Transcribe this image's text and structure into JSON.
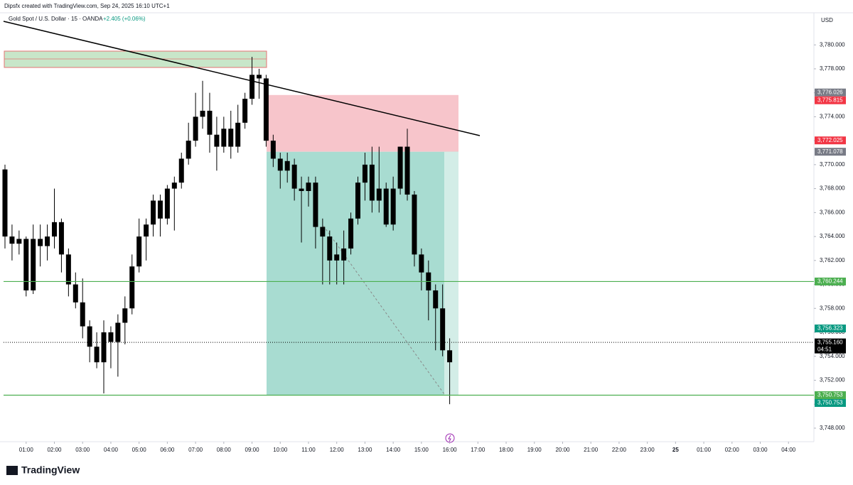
{
  "header": {
    "credit": "Dipsfx created with TradingView.com, Sep 24, 2025 16:10 UTC+1",
    "brand": "TradingView"
  },
  "chart_data": {
    "type": "candlestick",
    "title": "Gold Spot / U.S. Dollar · 15 · OANDA",
    "change": "+2.405 (+0.06%)",
    "y_unit": "USD",
    "color": "#000000",
    "x": [
      0.25,
      0.5,
      0.75,
      1,
      1.25,
      1.5,
      1.75,
      2,
      2.25,
      2.5,
      2.75,
      3,
      3.25,
      3.5,
      3.75,
      4,
      4.25,
      4.5,
      4.75,
      5,
      5.25,
      5.5,
      5.75,
      6,
      6.25,
      6.5,
      6.75,
      7,
      7.25,
      7.5,
      7.75,
      8,
      8.25,
      8.5,
      8.75,
      9,
      9.25,
      9.5,
      9.75,
      10,
      10.25,
      10.5,
      10.75,
      11,
      11.25,
      11.5,
      11.75,
      12,
      12.25,
      12.5,
      12.75,
      13,
      13.25,
      13.5,
      13.75,
      14,
      14.25,
      14.5,
      14.75,
      15,
      15.25,
      15.5,
      15.75,
      16
    ],
    "open": [
      3769.6,
      3764,
      3763.4,
      3763.8,
      3759.5,
      3763.8,
      3763.2,
      3764,
      3765.2,
      3762.5,
      3760,
      3758.5,
      3756.5,
      3754.8,
      3753.5,
      3756,
      3755.2,
      3756.8,
      3758,
      3761.5,
      3764,
      3765,
      3767,
      3765.5,
      3768,
      3768.5,
      3770.5,
      3772,
      3774,
      3774.5,
      3772.5,
      3771.5,
      3773,
      3771.5,
      3773.5,
      3775.5,
      3777.5,
      3777.2,
      3772,
      3770.5,
      3769.5,
      3770,
      3768,
      3767.8,
      3768.5,
      3764.8,
      3764,
      3762.5,
      3762,
      3763,
      3765.5,
      3768.5,
      3770,
      3767,
      3768,
      3765,
      3768,
      3771.5,
      3767.5,
      3762.5,
      3761,
      3759.5,
      3758,
      3754.5
    ],
    "high": [
      3770,
      3765,
      3764.5,
      3764,
      3765,
      3765,
      3765,
      3768,
      3765.5,
      3763,
      3761,
      3760.5,
      3757,
      3756,
      3757,
      3756.5,
      3757.5,
      3759,
      3762.5,
      3765.5,
      3765.5,
      3767.5,
      3767.5,
      3768.3,
      3769,
      3771,
      3773.5,
      3776,
      3777,
      3776,
      3774,
      3774,
      3774.5,
      3775,
      3776,
      3779,
      3778,
      3777.5,
      3772.5,
      3771,
      3771,
      3770.5,
      3769,
      3769,
      3769,
      3765.5,
      3764.5,
      3763.5,
      3764.5,
      3766,
      3769,
      3771,
      3771.5,
      3771.5,
      3768.5,
      3769,
      3771.5,
      3773,
      3767.8,
      3763,
      3762,
      3760,
      3760,
      3755.5
    ],
    "low": [
      3763,
      3762,
      3762.5,
      3759,
      3759.2,
      3761.5,
      3762,
      3763,
      3761,
      3759,
      3758,
      3755.5,
      3753.5,
      3753,
      3750.9,
      3753,
      3752.3,
      3755,
      3757.5,
      3761,
      3762,
      3764,
      3764,
      3765,
      3764.5,
      3768,
      3770,
      3771.5,
      3773,
      3771,
      3769.5,
      3771,
      3770.5,
      3771,
      3773,
      3775,
      3775.5,
      3771.5,
      3769.8,
      3768,
      3768.5,
      3767,
      3763.5,
      3766.5,
      3763,
      3760,
      3760,
      3760,
      3760,
      3762.5,
      3765,
      3767,
      3766,
      3766,
      3764.8,
      3764.5,
      3767.5,
      3767,
      3761.5,
      3759.5,
      3757,
      3754.5,
      3754,
      3750
    ],
    "close": [
      3764,
      3763.4,
      3763.8,
      3759.5,
      3763.8,
      3763.2,
      3764,
      3765.2,
      3762.5,
      3760,
      3758.5,
      3756.5,
      3754.8,
      3753.5,
      3756,
      3755.2,
      3756.8,
      3758,
      3761.5,
      3764,
      3765,
      3767,
      3765.5,
      3768,
      3768.5,
      3770.5,
      3772,
      3774,
      3774.5,
      3772.5,
      3771.5,
      3773,
      3771.5,
      3773.5,
      3775.5,
      3777.5,
      3777.2,
      3772,
      3770.5,
      3769.5,
      3770.3,
      3768,
      3767.8,
      3768.5,
      3764.8,
      3764,
      3762,
      3762,
      3763,
      3765.5,
      3768.5,
      3770,
      3767,
      3768,
      3765,
      3768,
      3771.5,
      3767.5,
      3762.5,
      3761,
      3759.5,
      3758,
      3754.5,
      3753.5
    ],
    "xlim": [
      0.2,
      28.9
    ],
    "ylim": [
      3746.87,
      3782.68
    ],
    "xticks": [
      {
        "value": 1,
        "label": "01:00"
      },
      {
        "value": 2,
        "label": "02:00"
      },
      {
        "value": 3,
        "label": "03:00"
      },
      {
        "value": 4,
        "label": "04:00"
      },
      {
        "value": 5,
        "label": "05:00"
      },
      {
        "value": 6,
        "label": "06:00"
      },
      {
        "value": 7,
        "label": "07:00"
      },
      {
        "value": 8,
        "label": "08:00"
      },
      {
        "value": 9,
        "label": "09:00"
      },
      {
        "value": 10,
        "label": "10:00"
      },
      {
        "value": 11,
        "label": "11:00"
      },
      {
        "value": 12,
        "label": "12:00"
      },
      {
        "value": 13,
        "label": "13:00"
      },
      {
        "value": 14,
        "label": "14:00"
      },
      {
        "value": 15,
        "label": "15:00"
      },
      {
        "value": 16,
        "label": "16:00"
      },
      {
        "value": 17,
        "label": "17:00"
      },
      {
        "value": 18,
        "label": "18:00"
      },
      {
        "value": 19,
        "label": "19:00"
      },
      {
        "value": 20,
        "label": "20:00"
      },
      {
        "value": 21,
        "label": "21:00"
      },
      {
        "value": 22,
        "label": "22:00"
      },
      {
        "value": 23,
        "label": "23:00"
      },
      {
        "value": 24,
        "label": "25"
      },
      {
        "value": 25,
        "label": "01:00"
      },
      {
        "value": 26,
        "label": "02:00"
      },
      {
        "value": 27,
        "label": "03:00"
      },
      {
        "value": 28,
        "label": "04:00"
      }
    ],
    "yticks": [
      {
        "value": 3748,
        "label": "3,748.000"
      },
      {
        "value": 3750,
        "label": "3,750.000"
      },
      {
        "value": 3752,
        "label": "3,752.000"
      },
      {
        "value": 3754,
        "label": "3,754.000"
      },
      {
        "value": 3756,
        "label": "3,756.000"
      },
      {
        "value": 3758,
        "label": "3,758.000"
      },
      {
        "value": 3760,
        "label": "3,760.000"
      },
      {
        "value": 3762,
        "label": "3,762.000"
      },
      {
        "value": 3764,
        "label": "3,764.000"
      },
      {
        "value": 3766,
        "label": "3,766.000"
      },
      {
        "value": 3768,
        "label": "3,768.000"
      },
      {
        "value": 3770,
        "label": "3,770.000"
      },
      {
        "value": 3772,
        "label": "3,772.000"
      },
      {
        "value": 3774,
        "label": "3,774.000"
      },
      {
        "value": 3776,
        "label": "3,776.000"
      },
      {
        "value": 3778,
        "label": "3,778.000"
      },
      {
        "value": 3780,
        "label": "3,780.000"
      }
    ],
    "price_labels": [
      {
        "value": 3776.026,
        "label": "3,776.026",
        "color": "#787b86"
      },
      {
        "value": 3775.815,
        "label": "3,775.815",
        "color": "#f23645"
      },
      {
        "value": 3772.025,
        "label": "3,772.025",
        "color": "#f23645"
      },
      {
        "value": 3771.078,
        "label": "3,771.078",
        "color": "#787b86"
      },
      {
        "value": 3760.244,
        "label": "3,760.244",
        "color": "#4caf50",
        "line": "solid"
      },
      {
        "value": 3756.323,
        "label": "3,756.323",
        "color": "#089981"
      },
      {
        "value": 3755.16,
        "label": "3,755.160",
        "color": "#000000",
        "line": "dotted",
        "sublabel": "04:51"
      },
      {
        "value": 3750.753,
        "label": "3,750.753",
        "color": "#4caf50",
        "line": "solid"
      },
      {
        "value": 3750.753,
        "label": "3,750.753",
        "color": "#089981"
      }
    ]
  }
}
